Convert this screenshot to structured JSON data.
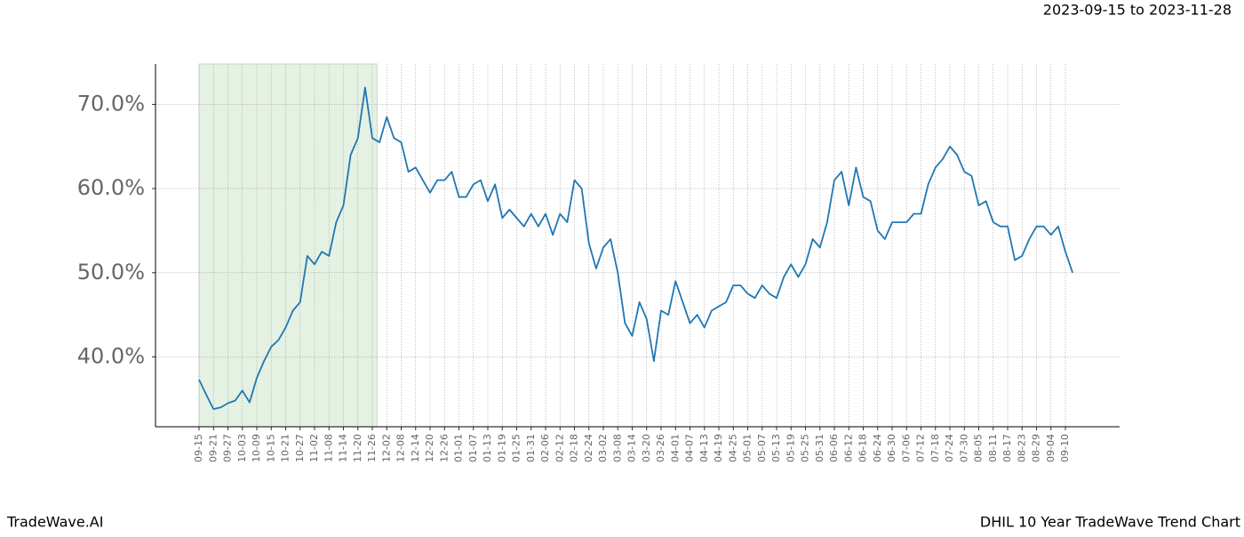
{
  "chart_data": {
    "type": "line",
    "title": "DHIL 10 Year TradeWave Trend Chart",
    "subtitle": "2023-09-15 to 2023-11-28",
    "source": "TradeWave.AI",
    "categories": [
      "09-15",
      null,
      "09-21",
      null,
      "09-27",
      null,
      "10-03",
      null,
      "10-09",
      null,
      "10-15",
      null,
      "10-21",
      null,
      "10-27",
      null,
      "11-02",
      null,
      "11-08",
      null,
      "11-14",
      null,
      "11-20",
      null,
      "11-26",
      null,
      "12-02",
      null,
      "12-08",
      null,
      "12-14",
      null,
      "12-20",
      null,
      "12-26",
      null,
      "01-01",
      null,
      "01-07",
      null,
      "01-13",
      null,
      "01-19",
      null,
      "01-25",
      null,
      "01-31",
      null,
      "02-06",
      null,
      "02-12",
      null,
      "02-18",
      null,
      "02-24",
      null,
      "03-02",
      null,
      "03-08",
      null,
      "03-14",
      null,
      "03-20",
      null,
      "03-26",
      null,
      "04-01",
      null,
      "04-07",
      null,
      "04-13",
      null,
      "04-19",
      null,
      "04-25",
      null,
      "05-01",
      null,
      "05-07",
      null,
      "05-13",
      null,
      "05-19",
      null,
      "05-25",
      null,
      "05-31",
      null,
      "06-06",
      null,
      "06-12",
      null,
      "06-18",
      null,
      "06-24",
      null,
      "06-30",
      null,
      "07-06",
      null,
      "07-12",
      null,
      "07-18",
      null,
      "07-24",
      null,
      "07-30",
      null,
      "08-05",
      null,
      "08-11",
      null,
      "08-17",
      null,
      "08-23",
      null,
      "08-29",
      null,
      "09-04",
      null,
      "09-10",
      null
    ],
    "series": [
      {
        "color": "#1f77b4",
        "values": [
          37.3,
          35.5,
          33.8,
          34.0,
          34.5,
          34.8,
          36.0,
          34.6,
          37.5,
          39.5,
          41.2,
          42.0,
          43.5,
          45.5,
          46.5,
          52.0,
          51.0,
          52.5,
          52.0,
          56.0,
          58.0,
          64.0,
          66.0,
          72.0,
          66.0,
          65.5,
          68.5,
          66.0,
          65.5,
          62.0,
          62.5,
          61.0,
          59.5,
          61.0,
          61.0,
          62.0,
          59.0,
          59.0,
          60.5,
          61.0,
          58.5,
          60.5,
          56.5,
          57.5,
          56.5,
          55.5,
          57.0,
          55.5,
          57.0,
          54.5,
          57.0,
          56.0,
          61.0,
          60.0,
          53.5,
          50.5,
          53.0,
          54.0,
          50.0,
          44.0,
          42.5,
          46.5,
          44.5,
          39.5,
          45.5,
          45.0,
          49.0,
          46.5,
          44.0,
          45.0,
          43.5,
          45.5,
          46.0,
          46.5,
          48.5,
          48.5,
          47.5,
          47.0,
          48.5,
          47.5,
          47.0,
          49.5,
          51.0,
          49.5,
          51.0,
          54.0,
          53.0,
          56.0,
          61.0,
          62.0,
          58.0,
          62.5,
          59.0,
          58.5,
          55.0,
          54.0,
          56.0,
          56.0,
          56.0,
          57.0,
          57.0,
          60.5,
          62.5,
          63.5,
          65.0,
          64.0,
          62.0,
          61.5,
          58.0,
          58.5,
          56.0,
          55.5,
          55.5,
          51.5,
          52.0,
          54.0,
          55.5,
          55.5,
          54.5,
          55.5,
          52.5,
          50.0
        ]
      }
    ],
    "ylim": [
      31.7,
      74.8
    ],
    "yticks": [
      {
        "value": 40,
        "label": "40.0%"
      },
      {
        "value": 50,
        "label": "50.0%"
      },
      {
        "value": 60,
        "label": "60.0%"
      },
      {
        "value": 70,
        "label": "70.0%"
      }
    ],
    "grid": true,
    "highlight_color": "#e5f1e3"
  }
}
